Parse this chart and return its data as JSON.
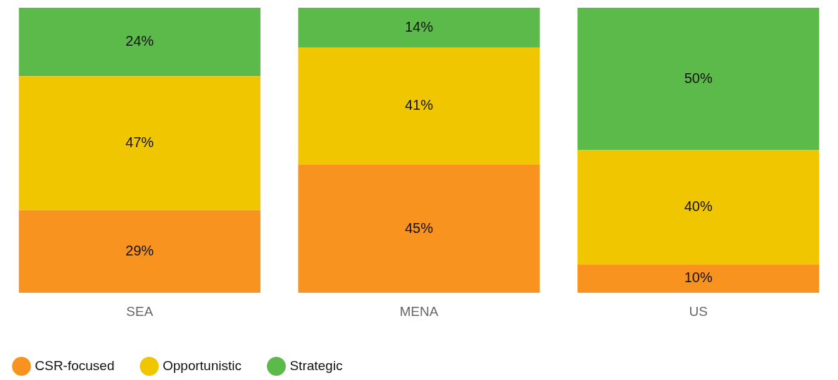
{
  "chart_data": {
    "type": "bar",
    "stacked": true,
    "categories": [
      "SEA",
      "MENA",
      "US"
    ],
    "series": [
      {
        "name": "CSR-focused",
        "color": "#f7931e",
        "values": [
          29,
          45,
          10
        ],
        "value_labels": [
          "29%",
          "45%",
          "10%"
        ]
      },
      {
        "name": "Opportunistic",
        "color": "#efc600",
        "values": [
          47,
          41,
          40
        ],
        "value_labels": [
          "47%",
          "41%",
          "40%"
        ]
      },
      {
        "name": "Strategic",
        "color": "#5cba4a",
        "values": [
          24,
          14,
          50
        ],
        "value_labels": [
          "24%",
          "14%",
          "50%"
        ]
      }
    ],
    "legend": "bottom left",
    "grid": false,
    "tick_labels": "x"
  }
}
